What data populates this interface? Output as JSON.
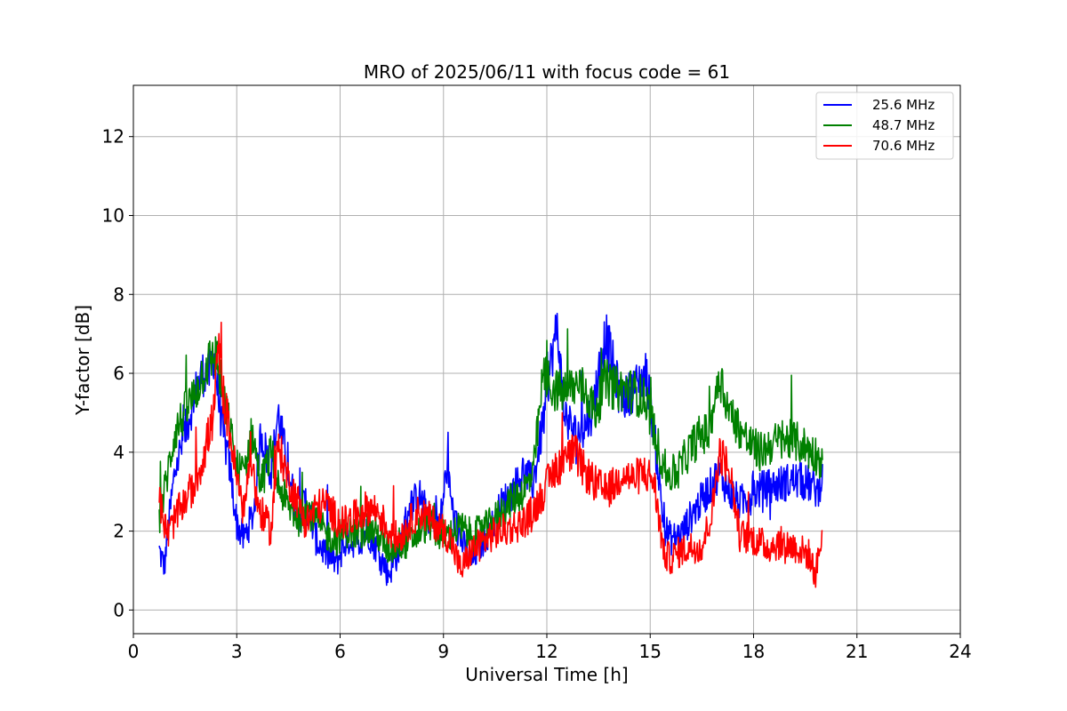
{
  "chart_data": {
    "type": "line",
    "title": "MRO of 2025/06/11 with focus code = 61",
    "xlabel": "Universal Time [h]",
    "ylabel": "Y-factor [dB]",
    "xlim": [
      0,
      24
    ],
    "ylim": [
      -0.6,
      13.3
    ],
    "xticks": [
      0,
      3,
      6,
      9,
      12,
      15,
      18,
      21,
      24
    ],
    "yticks": [
      0,
      2,
      4,
      6,
      8,
      10,
      12
    ],
    "grid": true,
    "legend_position": "top-right",
    "series": [
      {
        "name": "25.6 MHz",
        "color": "#0000ff",
        "x": [
          0.75,
          0.9,
          1.0,
          1.2,
          1.5,
          1.8,
          2.0,
          2.2,
          2.35,
          2.45,
          2.6,
          2.8,
          3.0,
          3.2,
          3.5,
          3.7,
          4.0,
          4.2,
          4.5,
          4.8,
          5.0,
          5.3,
          5.6,
          5.9,
          6.2,
          6.5,
          6.8,
          7.1,
          7.4,
          7.7,
          8.0,
          8.3,
          8.6,
          8.9,
          9.1,
          9.3,
          9.5,
          9.8,
          10.1,
          10.4,
          10.7,
          11.0,
          11.3,
          11.6,
          11.9,
          12.1,
          12.3,
          12.5,
          12.8,
          13.0,
          13.3,
          13.5,
          13.7,
          13.9,
          14.1,
          14.3,
          14.6,
          14.9,
          15.2,
          15.4,
          15.6,
          15.9,
          16.2,
          16.5,
          16.8,
          17.0,
          17.3,
          17.6,
          18.0,
          18.4,
          18.8,
          19.2,
          19.6,
          19.9,
          20.0
        ],
        "values": [
          1.5,
          1.1,
          2.0,
          3.5,
          4.5,
          5.5,
          6.0,
          6.0,
          6.5,
          5.5,
          4.5,
          3.6,
          2.2,
          1.8,
          2.5,
          4.5,
          3.5,
          5.0,
          3.5,
          2.3,
          2.8,
          1.8,
          1.4,
          1.2,
          1.8,
          1.7,
          2.0,
          1.5,
          0.9,
          1.5,
          2.6,
          2.9,
          2.3,
          2.2,
          3.6,
          2.3,
          1.8,
          1.2,
          1.7,
          2.1,
          2.7,
          3.0,
          3.5,
          3.2,
          4.8,
          6.2,
          7.2,
          5.0,
          4.5,
          4.5,
          5.0,
          6.0,
          7.0,
          6.3,
          5.5,
          5.4,
          5.7,
          6.0,
          3.8,
          2.1,
          1.8,
          1.9,
          2.4,
          2.8,
          3.2,
          3.5,
          3.0,
          2.7,
          3.0,
          3.1,
          3.2,
          3.3,
          3.2,
          3.0,
          3.7
        ]
      },
      {
        "name": "48.7 MHz",
        "color": "#008000",
        "x": [
          0.75,
          0.9,
          1.0,
          1.2,
          1.5,
          1.8,
          2.0,
          2.2,
          2.4,
          2.6,
          2.8,
          3.0,
          3.2,
          3.45,
          3.7,
          4.0,
          4.2,
          4.5,
          4.8,
          5.0,
          5.3,
          5.6,
          5.9,
          6.2,
          6.5,
          6.8,
          7.1,
          7.4,
          7.7,
          8.0,
          8.3,
          8.6,
          8.9,
          9.2,
          9.5,
          9.8,
          10.1,
          10.4,
          10.7,
          11.0,
          11.3,
          11.6,
          11.9,
          12.2,
          12.5,
          12.8,
          13.1,
          13.4,
          13.7,
          14.0,
          14.3,
          14.6,
          14.9,
          15.2,
          15.5,
          15.8,
          16.1,
          16.4,
          16.7,
          17.0,
          17.3,
          17.6,
          17.9,
          18.2,
          18.5,
          18.8,
          19.1,
          19.4,
          19.7,
          20.0
        ],
        "values": [
          2.2,
          3.0,
          3.5,
          4.5,
          5.0,
          5.5,
          6.0,
          6.3,
          6.5,
          5.4,
          4.6,
          3.6,
          3.5,
          4.5,
          3.2,
          4.0,
          3.2,
          2.6,
          2.3,
          2.6,
          2.3,
          1.9,
          1.8,
          2.0,
          1.9,
          2.1,
          1.9,
          1.5,
          1.7,
          1.7,
          2.0,
          2.2,
          1.9,
          1.9,
          2.1,
          1.9,
          2.0,
          2.2,
          2.5,
          2.8,
          3.0,
          3.4,
          6.0,
          5.6,
          5.5,
          5.7,
          5.6,
          5.0,
          5.8,
          5.6,
          5.6,
          5.5,
          5.3,
          4.2,
          3.4,
          3.5,
          4.0,
          4.4,
          4.5,
          6.0,
          5.0,
          4.6,
          4.2,
          4.0,
          4.2,
          4.3,
          4.3,
          4.2,
          4.0,
          3.8
        ]
      },
      {
        "name": "70.6 MHz",
        "color": "#ff0000",
        "x": [
          0.75,
          0.9,
          1.0,
          1.2,
          1.5,
          1.8,
          2.0,
          2.2,
          2.35,
          2.45,
          2.6,
          2.8,
          3.0,
          3.2,
          3.4,
          3.6,
          3.8,
          4.0,
          4.2,
          4.5,
          4.8,
          5.0,
          5.3,
          5.6,
          5.9,
          6.2,
          6.5,
          6.8,
          7.1,
          7.4,
          7.7,
          8.0,
          8.3,
          8.6,
          8.9,
          9.2,
          9.5,
          9.8,
          10.1,
          10.4,
          10.7,
          11.0,
          11.3,
          11.6,
          11.9,
          12.2,
          12.5,
          12.8,
          13.1,
          13.4,
          13.7,
          14.0,
          14.2,
          14.5,
          14.8,
          15.1,
          15.4,
          15.6,
          15.9,
          16.2,
          16.5,
          16.8,
          17.0,
          17.3,
          17.6,
          18.0,
          18.4,
          18.8,
          19.2,
          19.6,
          19.8,
          20.0
        ],
        "values": [
          2.8,
          2.2,
          1.9,
          2.3,
          2.8,
          3.2,
          3.8,
          4.5,
          5.0,
          6.8,
          5.5,
          4.5,
          3.3,
          2.5,
          4.0,
          2.7,
          2.3,
          2.0,
          4.2,
          3.3,
          2.7,
          2.2,
          2.6,
          2.7,
          2.3,
          2.2,
          2.4,
          2.6,
          2.5,
          2.0,
          1.8,
          2.2,
          2.5,
          2.3,
          2.1,
          1.8,
          1.0,
          1.5,
          1.7,
          1.9,
          2.0,
          2.1,
          2.2,
          2.5,
          3.0,
          3.5,
          3.8,
          4.0,
          3.5,
          3.2,
          3.0,
          3.2,
          3.5,
          3.3,
          3.5,
          3.3,
          1.4,
          1.3,
          1.5,
          1.6,
          1.6,
          2.5,
          4.0,
          3.6,
          1.9,
          1.8,
          1.6,
          1.7,
          1.6,
          1.4,
          0.9,
          2.0
        ]
      }
    ]
  }
}
